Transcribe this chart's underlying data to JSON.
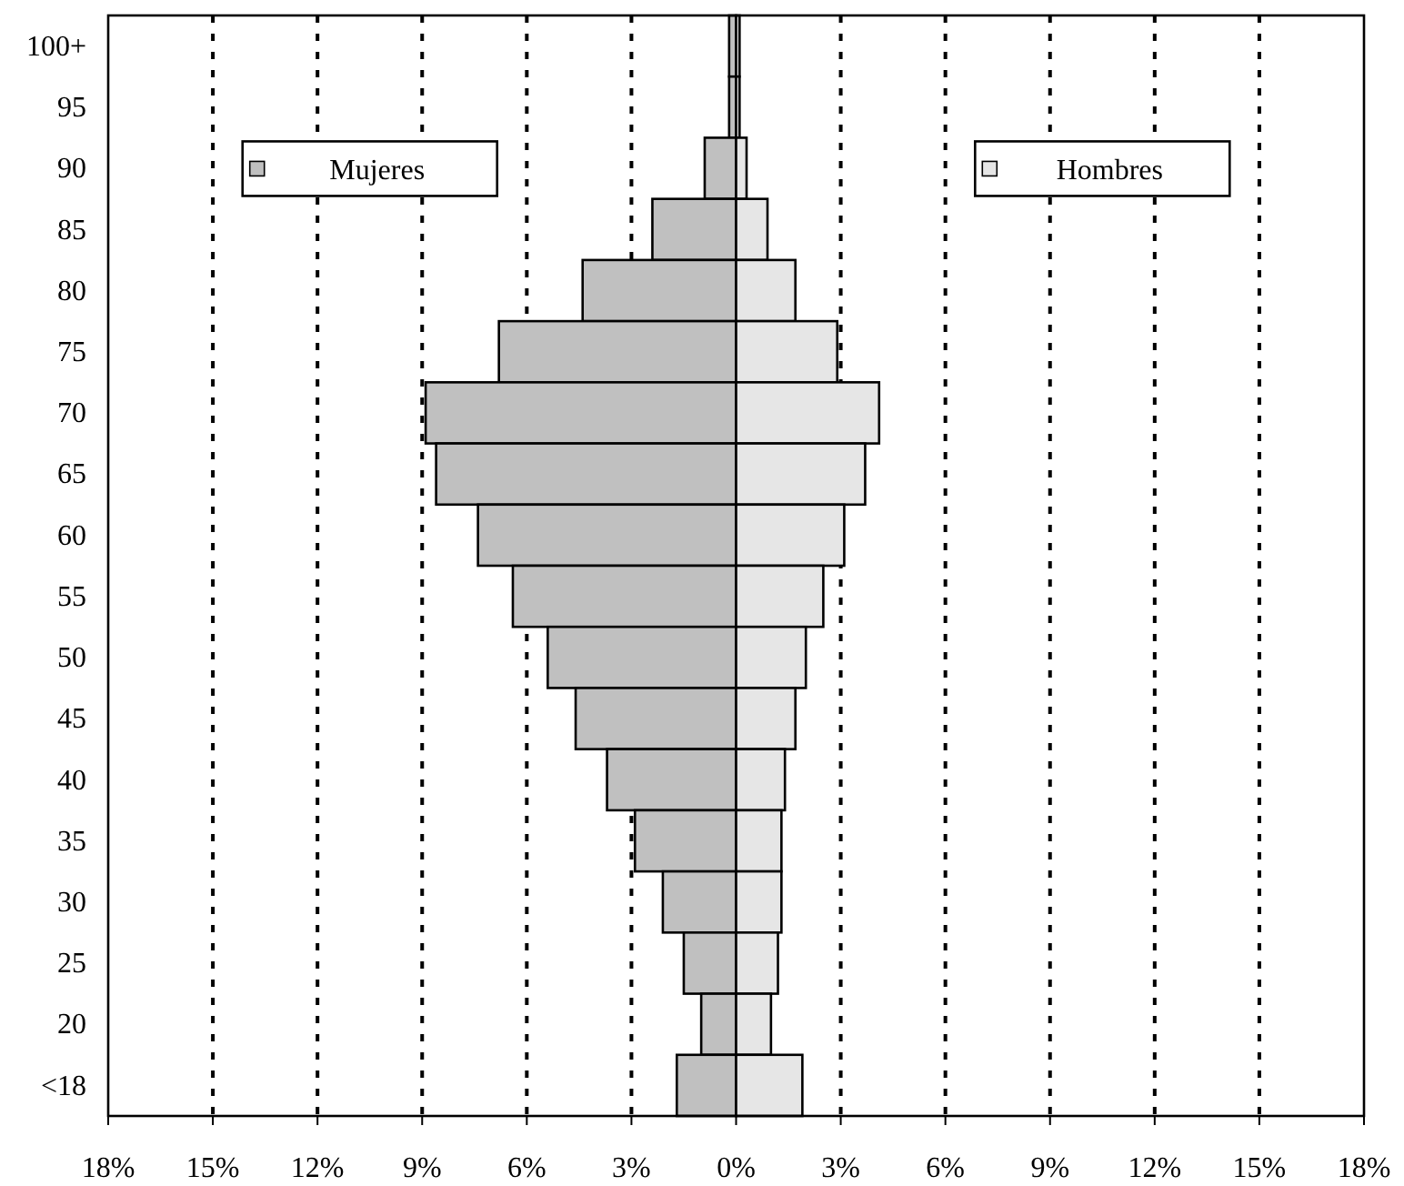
{
  "chart_data": {
    "type": "bar",
    "orientation": "horizontal",
    "stacked": true,
    "categories": [
      "100+",
      "95",
      "90",
      "85",
      "80",
      "75",
      "70",
      "65",
      "60",
      "55",
      "50",
      "45",
      "40",
      "35",
      "30",
      "25",
      "20",
      "<18"
    ],
    "series": [
      {
        "name": "Mujeres",
        "color": "#c0c0c0",
        "values": [
          -0.2,
          -0.2,
          -0.9,
          -2.4,
          -4.4,
          -6.8,
          -8.9,
          -8.6,
          -7.4,
          -6.4,
          -5.4,
          -4.6,
          -3.7,
          -2.9,
          -2.1,
          -1.5,
          -1.0,
          -1.7
        ]
      },
      {
        "name": "Hombres",
        "color": "#e6e6e6",
        "values": [
          0.1,
          0.1,
          0.3,
          0.9,
          1.7,
          2.9,
          4.1,
          3.7,
          3.1,
          2.5,
          2.0,
          1.7,
          1.4,
          1.3,
          1.3,
          1.2,
          1.0,
          1.9
        ]
      }
    ],
    "xlim": [
      -18,
      18
    ],
    "xticks": [
      {
        "value": -18,
        "label": "18%"
      },
      {
        "value": -15,
        "label": "15%"
      },
      {
        "value": -12,
        "label": "12%"
      },
      {
        "value": -9,
        "label": "9%"
      },
      {
        "value": -6,
        "label": "6%"
      },
      {
        "value": -3,
        "label": "3%"
      },
      {
        "value": 0,
        "label": "0%"
      },
      {
        "value": 3,
        "label": "3%"
      },
      {
        "value": 6,
        "label": "6%"
      },
      {
        "value": 9,
        "label": "9%"
      },
      {
        "value": 12,
        "label": "12%"
      },
      {
        "value": 15,
        "label": "15%"
      },
      {
        "value": 18,
        "label": "18%"
      }
    ],
    "grid": "x",
    "legend": "top"
  }
}
